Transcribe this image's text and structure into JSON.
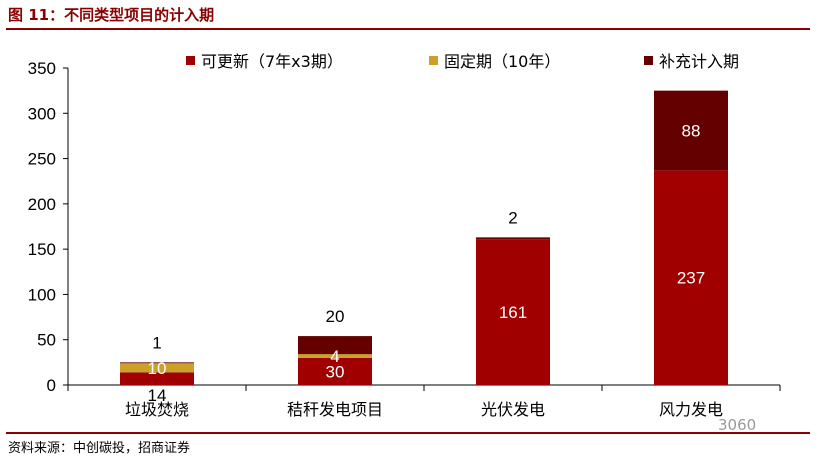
{
  "header": {
    "figure_title": "图 11：不同类型项目的计入期"
  },
  "footer": {
    "source": "资料来源：中创碳投，招商证券",
    "watermark": "3060"
  },
  "chart_data": {
    "type": "bar",
    "stacked": true,
    "categories": [
      "垃圾焚烧",
      "秸秆发电项目",
      "光伏发电",
      "风力发电"
    ],
    "series": [
      {
        "name": "可更新（7年x3期）",
        "color": "#a00000",
        "values": [
          14,
          30,
          161,
          237
        ],
        "labels": [
          "14",
          "30",
          "161",
          "237"
        ]
      },
      {
        "name": "固定期（10年）",
        "color": "#c9a227",
        "values": [
          10,
          4,
          0,
          0
        ],
        "labels": [
          "10",
          "4",
          "",
          ""
        ]
      },
      {
        "name": "补充计入期",
        "color": "#650000",
        "values": [
          1,
          20,
          2,
          88
        ],
        "labels": [
          "1",
          "20",
          "2",
          "88"
        ]
      }
    ],
    "ylim": [
      0,
      350
    ],
    "yticks": [
      0,
      50,
      100,
      150,
      200,
      250,
      300,
      350
    ],
    "ytick_labels": [
      "0",
      "50",
      "100",
      "150",
      "200",
      "250",
      "300",
      "350"
    ],
    "legend_position": "top",
    "grid": false
  }
}
